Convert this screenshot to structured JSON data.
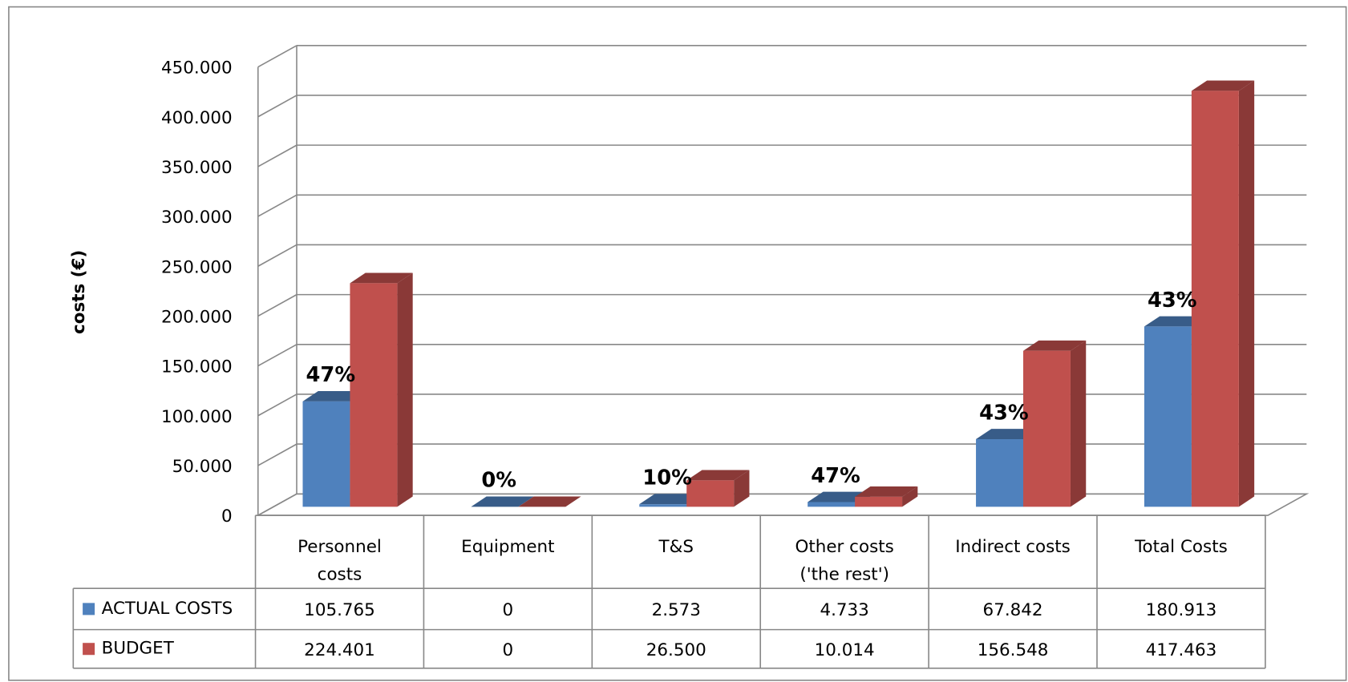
{
  "chart_data": {
    "type": "bar3d_table",
    "y_label": "costs (€)",
    "categories": [
      "Personnel\ncosts",
      "Equipment",
      "T&S",
      "Other costs\n('the rest')",
      "Indirect costs",
      "Total Costs"
    ],
    "series": [
      {
        "name": "ACTUAL COSTS",
        "color": "#4f81bd",
        "values": [
          105765,
          0,
          2573,
          4733,
          67842,
          180913
        ],
        "value_labels": [
          "105.765",
          "0",
          "2.573",
          "4.733",
          "67.842",
          "180.913"
        ]
      },
      {
        "name": "BUDGET",
        "color": "#c0504d",
        "values": [
          224401,
          0,
          26500,
          10014,
          156548,
          417463
        ],
        "value_labels": [
          "224.401",
          "0",
          "26.500",
          "10.014",
          "156.548",
          "417.463"
        ]
      }
    ],
    "annotations": [
      "47%",
      "0%",
      "10%",
      "47%",
      "43%",
      "43%"
    ],
    "ylim": [
      0,
      450000
    ],
    "yticks": [
      0,
      {
        "value": 50000,
        "label": "50.000"
      },
      {
        "value": 100000,
        "label": "100.000"
      },
      {
        "value": 150000,
        "label": "150.000"
      },
      {
        "value": 200000,
        "label": "200.000"
      },
      {
        "value": 250000,
        "label": "250.000"
      },
      {
        "value": 300000,
        "label": "300.000"
      },
      {
        "value": 350000,
        "label": "350.000"
      },
      {
        "value": 400000,
        "label": "400.000"
      },
      {
        "value": 450000,
        "label": "450.000"
      }
    ],
    "grid": true
  }
}
